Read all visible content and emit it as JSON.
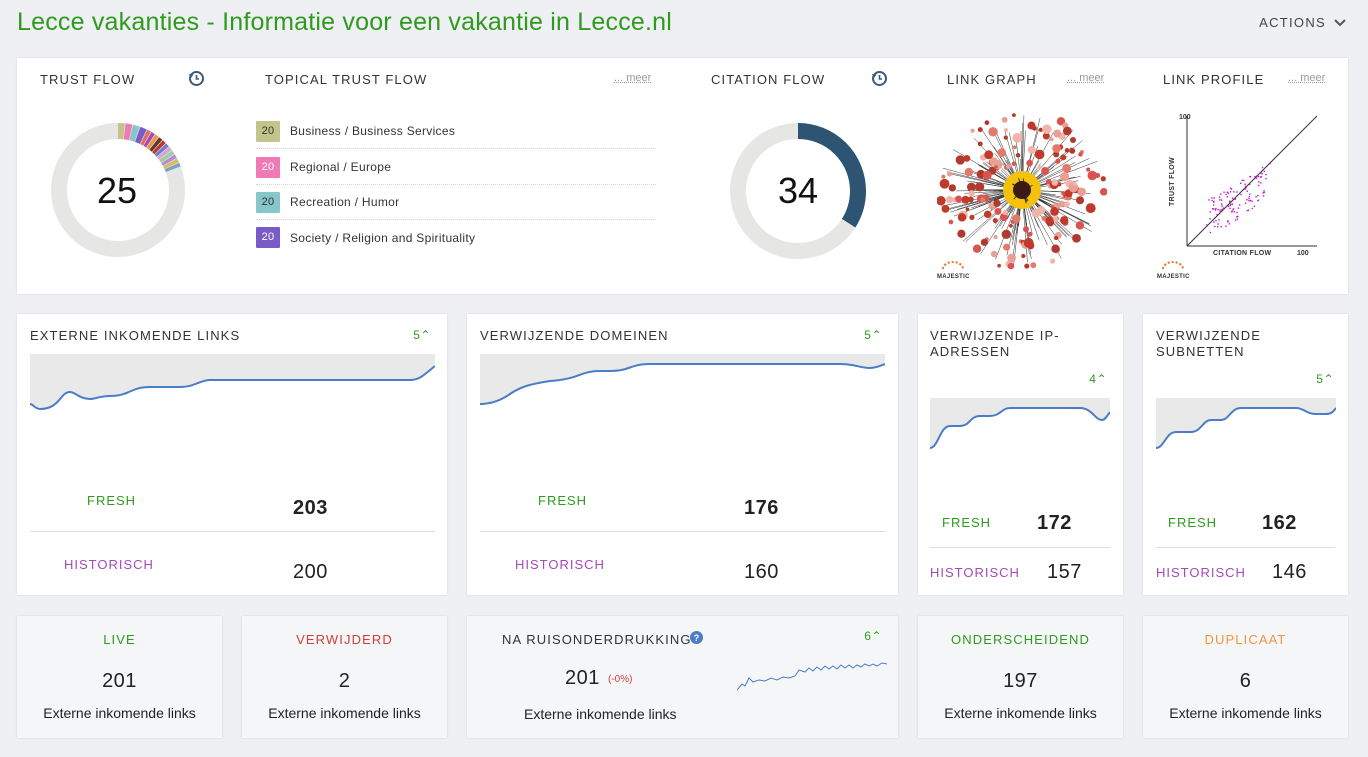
{
  "header": {
    "title": "Lecce vakanties - Informatie voor een vakantie in Lecce.nl",
    "actions_label": "ACTIONS"
  },
  "top": {
    "trust_flow": {
      "label": "TRUST FLOW",
      "value": "25"
    },
    "topical": {
      "label": "TOPICAL TRUST FLOW",
      "meer": "... meer",
      "items": [
        {
          "score": "20",
          "topic": "Business / Business Services",
          "color": "#c2c48a"
        },
        {
          "score": "20",
          "topic": "Regional / Europe",
          "color": "#f07ab5"
        },
        {
          "score": "20",
          "topic": "Recreation / Humor",
          "color": "#86c7c9"
        },
        {
          "score": "20",
          "topic": "Society / Religion and Spirituality",
          "color": "#7a5cc9"
        }
      ]
    },
    "citation_flow": {
      "label": "CITATION FLOW",
      "value": "34",
      "fraction": 0.34
    },
    "link_graph": {
      "label": "LINK GRAPH",
      "meer": "... meer",
      "brand": "MAJESTIC"
    },
    "link_profile": {
      "label": "LINK PROFILE",
      "meer": "... meer",
      "brand": "MAJESTIC",
      "y_label": "TRUST FLOW",
      "x_label": "CITATION FLOW",
      "y_max": "100",
      "x_max": "100"
    }
  },
  "stats": [
    {
      "title": "EXTERNE INKOMENDE LINKS",
      "trend": "5",
      "fresh_label": "FRESH",
      "fresh": "203",
      "hist_label": "HISTORISCH",
      "hist": "200"
    },
    {
      "title": "VERWIJZENDE DOMEINEN",
      "trend": "5",
      "fresh_label": "FRESH",
      "fresh": "176",
      "hist_label": "HISTORISCH",
      "hist": "160"
    },
    {
      "title_1": "VERWIJZENDE IP-",
      "title_2": "ADRESSEN",
      "trend": "4",
      "fresh_label": "FRESH",
      "fresh": "172",
      "hist_label": "HISTORISCH",
      "hist": "157"
    },
    {
      "title_1": "VERWIJZENDE",
      "title_2": "SUBNETTEN",
      "trend": "5",
      "fresh_label": "FRESH",
      "fresh": "162",
      "hist_label": "HISTORISCH",
      "hist": "146"
    }
  ],
  "bottom": {
    "live": {
      "label": "LIVE",
      "value": "201",
      "sub": "Externe inkomende links"
    },
    "removed": {
      "label": "VERWIJDERD",
      "value": "2",
      "sub": "Externe inkomende links"
    },
    "noise": {
      "label": "NA RUISONDERDRUKKING",
      "value": "201",
      "delta": "(-0%)",
      "trend": "6",
      "sub": "Externe inkomende links"
    },
    "distinct": {
      "label": "ONDERSCHEIDEND",
      "value": "197",
      "sub": "Externe inkomende links"
    },
    "duplicate": {
      "label": "DUPLICAAT",
      "value": "6",
      "sub": "Externe inkomende links"
    }
  },
  "colors": {
    "green": "#2e9b1e",
    "purple": "#a64ab8",
    "red": "#d43b3b",
    "orange": "#f29441",
    "citation": "#2d5472"
  }
}
